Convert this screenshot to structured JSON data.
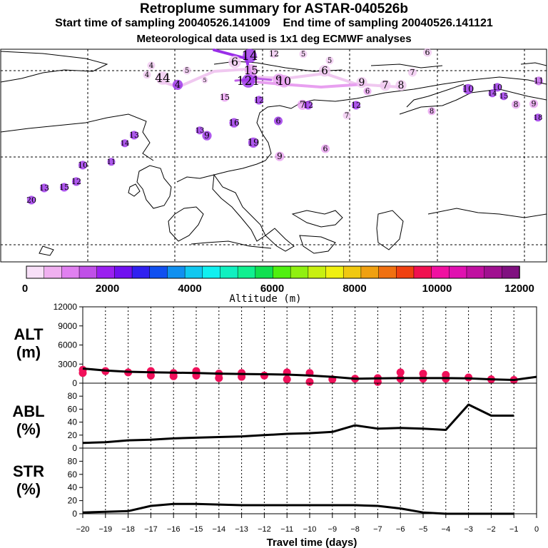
{
  "header": {
    "title": "Retroplume summary for ASTAR-040526b",
    "start_label": "Start time of sampling 20040526.141009",
    "end_label": "End time of sampling 20040526.141121",
    "met_label": "Meteorological data used is 1x1 deg ECMWF analyses"
  },
  "map": {
    "plume_labels": [
      {
        "t": "14",
        "c": "#9a2ee8"
      },
      {
        "t": "12",
        "c": "#f0c8f0"
      },
      {
        "t": "5",
        "c": "#f0c8f0"
      },
      {
        "t": "5",
        "c": "#f0c8f0"
      },
      {
        "t": "6",
        "c": "#f0c8f0"
      },
      {
        "t": "6",
        "c": "#f0c8f0"
      },
      {
        "t": "7",
        "c": "#f0c8f0"
      },
      {
        "t": "4",
        "c": "#f0c8f0"
      },
      {
        "t": "4",
        "c": "#f0c8f0"
      },
      {
        "t": "5",
        "c": "#f0c8f0"
      },
      {
        "t": "44",
        "c": "#f0c8f0"
      },
      {
        "t": "4",
        "c": "#9a2ee8"
      },
      {
        "t": "5",
        "c": "#f0c8f0"
      },
      {
        "t": "15",
        "c": "#e8a0f0"
      },
      {
        "t": "6",
        "c": "#f0c8f0"
      },
      {
        "t": "9",
        "c": "#f0c8f0"
      },
      {
        "t": "7",
        "c": "#f0c8f0"
      },
      {
        "t": "8",
        "c": "#f0c8f0"
      },
      {
        "t": "6",
        "c": "#e8a0f0"
      },
      {
        "t": "9",
        "c": "#e8a0f0"
      },
      {
        "t": "121",
        "c": "#9a2ee8"
      },
      {
        "t": "10",
        "c": "#e8a0f0"
      },
      {
        "t": "15",
        "c": "#e8a0f0"
      },
      {
        "t": "12",
        "c": "#9a2ee8"
      },
      {
        "t": "7",
        "c": "#e8a0f0"
      },
      {
        "t": "12",
        "c": "#9a2ee8"
      },
      {
        "t": "7",
        "c": "#f0c8f0"
      },
      {
        "t": "8",
        "c": "#e8a0f0"
      },
      {
        "t": "10",
        "c": "#9a2ee8"
      },
      {
        "t": "10",
        "c": "#9a2ee8"
      },
      {
        "t": "14",
        "c": "#9a2ee8"
      },
      {
        "t": "15",
        "c": "#9a2ee8"
      },
      {
        "t": "11",
        "c": "#c060e8"
      },
      {
        "t": "8",
        "c": "#e8a0f0"
      },
      {
        "t": "9",
        "c": "#e8a0f0"
      },
      {
        "t": "18",
        "c": "#9a2ee8"
      },
      {
        "t": "12",
        "c": "#9a2ee8"
      },
      {
        "t": "6",
        "c": "#9a2ee8"
      },
      {
        "t": "9",
        "c": "#9a2ee8"
      },
      {
        "t": "13",
        "c": "#9a2ee8"
      },
      {
        "t": "16",
        "c": "#9a2ee8"
      },
      {
        "t": "19",
        "c": "#9a2ee8"
      },
      {
        "t": "13",
        "c": "#9a2ee8"
      },
      {
        "t": "9",
        "c": "#e8a0f0"
      },
      {
        "t": "6",
        "c": "#e8a0f0"
      },
      {
        "t": "14",
        "c": "#9a2ee8"
      },
      {
        "t": "10",
        "c": "#9a2ee8"
      },
      {
        "t": "11",
        "c": "#9a2ee8"
      },
      {
        "t": "12",
        "c": "#9a2ee8"
      },
      {
        "t": "15",
        "c": "#9a2ee8"
      },
      {
        "t": "13",
        "c": "#9a2ee8"
      },
      {
        "t": "20",
        "c": "#9a2ee8"
      }
    ]
  },
  "colorbar": {
    "colors": [
      "#f8e0f8",
      "#f0b0f0",
      "#e080f0",
      "#c050e8",
      "#9a20f0",
      "#7010f0",
      "#3020f0",
      "#1050f0",
      "#1090f0",
      "#10c8f0",
      "#10f0f0",
      "#10f0c0",
      "#10f090",
      "#10e050",
      "#50f010",
      "#90f010",
      "#c8f010",
      "#f0f010",
      "#f0c810",
      "#f0a010",
      "#f07010",
      "#f04010",
      "#f01050",
      "#f010a0",
      "#e010b0",
      "#c010a0",
      "#a01090",
      "#801080"
    ],
    "ticks": [
      "0",
      "2000",
      "4000",
      "6000",
      "8000",
      "10000",
      "12000"
    ],
    "label": "Altitude (m)"
  },
  "chart_data": [
    {
      "type": "line",
      "panel": "ALT",
      "ylabel": "ALT\n(m)",
      "ylabel_line1": "ALT",
      "ylabel_line2": "(m)",
      "ylim": [
        0,
        12000
      ],
      "yticks": [
        "12000",
        "9000",
        "6000",
        "3000",
        "0"
      ],
      "x": [
        -20,
        -19,
        -18,
        -17,
        -16,
        -15,
        -14,
        -13,
        -12,
        -11,
        -10,
        -9,
        -8,
        -7,
        -6,
        -5,
        -4,
        -3,
        -2,
        -1,
        0
      ],
      "mean": [
        2300,
        2000,
        1800,
        1700,
        1650,
        1600,
        1500,
        1450,
        1400,
        1350,
        1200,
        1000,
        700,
        750,
        800,
        800,
        800,
        750,
        600,
        500,
        1000
      ],
      "dots": [
        [
          -20,
          2100
        ],
        [
          -20,
          1600
        ],
        [
          -19,
          1900
        ],
        [
          -18,
          1700
        ],
        [
          -17,
          1200
        ],
        [
          -17,
          1900
        ],
        [
          -16,
          1100
        ],
        [
          -16,
          1600
        ],
        [
          -15,
          1200
        ],
        [
          -15,
          1900
        ],
        [
          -14,
          800
        ],
        [
          -14,
          1500
        ],
        [
          -13,
          1000
        ],
        [
          -13,
          1600
        ],
        [
          -12,
          1200
        ],
        [
          -11,
          600
        ],
        [
          -11,
          1700
        ],
        [
          -10,
          1600
        ],
        [
          -10,
          200
        ],
        [
          -9,
          600
        ],
        [
          -8,
          700
        ],
        [
          -7,
          800
        ],
        [
          -7,
          200
        ],
        [
          -6,
          1700
        ],
        [
          -6,
          700
        ],
        [
          -5,
          1500
        ],
        [
          -5,
          700
        ],
        [
          -4,
          1300
        ],
        [
          -4,
          700
        ],
        [
          -3,
          900
        ],
        [
          -2,
          600
        ],
        [
          -1,
          500
        ]
      ]
    },
    {
      "type": "line",
      "panel": "ABL",
      "ylabel_line1": "ABL",
      "ylabel_line2": "(%)",
      "ylim": [
        0,
        100
      ],
      "yticks": [
        "80",
        "60",
        "40",
        "20",
        "0"
      ],
      "x": [
        -20,
        -19,
        -18,
        -17,
        -16,
        -15,
        -14,
        -13,
        -12,
        -11,
        -10,
        -9,
        -8,
        -7,
        -6,
        -5,
        -4,
        -3,
        -2,
        -1
      ],
      "values": [
        8,
        9,
        12,
        13,
        15,
        16,
        17,
        18,
        20,
        22,
        23,
        25,
        35,
        30,
        31,
        30,
        28,
        67,
        50,
        50
      ]
    },
    {
      "type": "line",
      "panel": "STR",
      "ylabel_line1": "STR",
      "ylabel_line2": "(%)",
      "ylim": [
        0,
        100
      ],
      "yticks": [
        "80",
        "60",
        "40",
        "20",
        "0"
      ],
      "x": [
        -20,
        -19,
        -18,
        -17,
        -16,
        -15,
        -14,
        -13,
        -12,
        -11,
        -10,
        -9,
        -8,
        -7,
        -6,
        -5,
        -4,
        -3,
        -2,
        -1
      ],
      "values": [
        2,
        3,
        4,
        12,
        15,
        15,
        14,
        13,
        13,
        13,
        13,
        13,
        13,
        12,
        8,
        2,
        0,
        0,
        0,
        0
      ],
      "xlabel": "Travel time (days)",
      "xticks": [
        "−20",
        "−19",
        "−18",
        "−17",
        "−16",
        "−15",
        "−14",
        "−13",
        "−12",
        "−11",
        "−10",
        "−9",
        "−8",
        "−7",
        "−6",
        "−5",
        "−4",
        "−3",
        "−2",
        "−1",
        "0"
      ]
    }
  ]
}
